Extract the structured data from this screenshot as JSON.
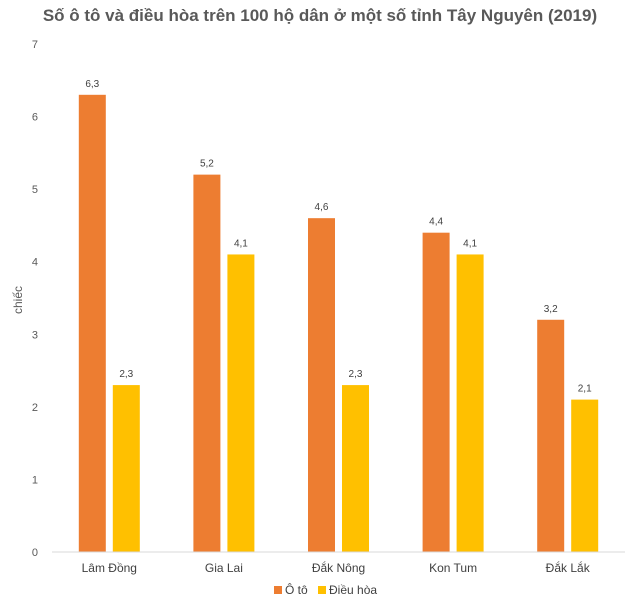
{
  "chart_data": {
    "type": "bar",
    "title": "Số ô tô và điều hòa trên 100 hộ dân ở một số tỉnh Tây Nguyên (2019)",
    "xlabel": "",
    "ylabel": "chiếc",
    "ylim": [
      0,
      7
    ],
    "yticks": [
      "0",
      "1",
      "2",
      "3",
      "4",
      "5",
      "6",
      "7"
    ],
    "categories": [
      "Lâm Đồng",
      "Gia Lai",
      "Đắk Nông",
      "Kon Tum",
      "Đắk Lắk"
    ],
    "series": [
      {
        "name": "Ô tô",
        "color": "#ED7D31",
        "values": [
          6.3,
          5.2,
          4.6,
          4.4,
          3.2
        ],
        "labels": [
          "6,3",
          "5,2",
          "4,6",
          "4,4",
          "3,2"
        ]
      },
      {
        "name": "Điều hòa",
        "color": "#FFC000",
        "values": [
          2.3,
          4.1,
          2.3,
          4.1,
          2.1
        ],
        "labels": [
          "2,3",
          "4,1",
          "2,3",
          "4,1",
          "2,1"
        ]
      }
    ],
    "grid": false,
    "legend": "bottom"
  }
}
